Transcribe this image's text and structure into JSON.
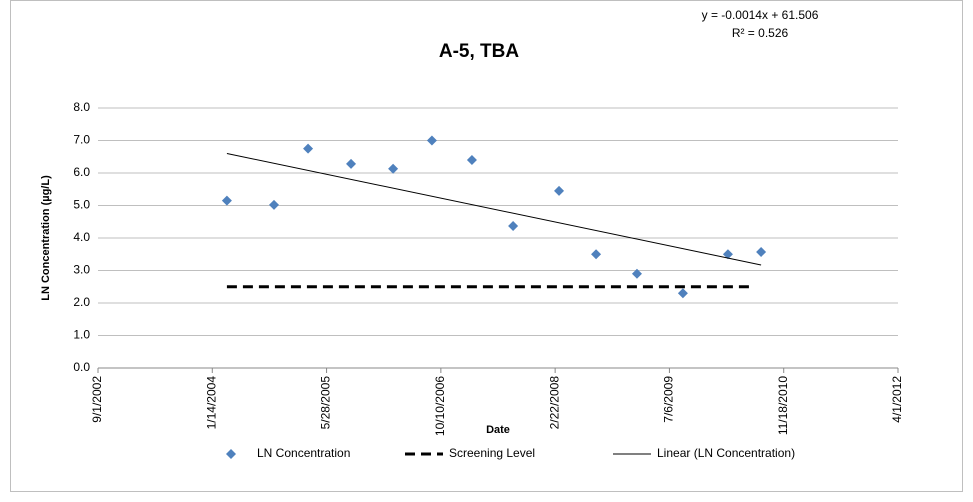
{
  "chart_data": {
    "type": "scatter",
    "title": "A-5, TBA",
    "annotations": [
      "y = -0.0014x + 61.506",
      "R² = 0.526"
    ],
    "x_label": "Date",
    "y_label": "LN Concentration (µg/L)",
    "xlim": [
      37500,
      41000
    ],
    "xticks": [
      {
        "value": 37500,
        "label": "9/1/2002"
      },
      {
        "value": 38000,
        "label": "1/14/2004"
      },
      {
        "value": 38500,
        "label": "5/28/2005"
      },
      {
        "value": 39000,
        "label": "10/10/2006"
      },
      {
        "value": 39500,
        "label": "2/22/2008"
      },
      {
        "value": 40000,
        "label": "7/6/2009"
      },
      {
        "value": 40500,
        "label": "11/18/2010"
      },
      {
        "value": 41000,
        "label": "4/1/2012"
      }
    ],
    "ylim": [
      0,
      8
    ],
    "yticks": [
      {
        "value": 0,
        "label": "0.0"
      },
      {
        "value": 1,
        "label": "1.0"
      },
      {
        "value": 2,
        "label": "2.0"
      },
      {
        "value": 3,
        "label": "3.0"
      },
      {
        "value": 4,
        "label": "4.0"
      },
      {
        "value": 5,
        "label": "5.0"
      },
      {
        "value": 6,
        "label": "6.0"
      },
      {
        "value": 7,
        "label": "7.0"
      },
      {
        "value": 8,
        "label": "8.0"
      }
    ],
    "grid": true,
    "legend": "bottom",
    "series": [
      {
        "name": "LN Concentration",
        "color": "#4f81bd",
        "marker": "diamond",
        "x": [
          38064,
          38270,
          38419,
          38607,
          38791,
          38961,
          39136,
          39316,
          39517,
          39679,
          39858,
          40059,
          40256,
          40401
        ],
        "values": [
          5.15,
          5.02,
          6.75,
          6.28,
          6.13,
          7.0,
          6.4,
          4.37,
          5.45,
          3.5,
          2.9,
          2.3,
          3.5,
          3.57
        ]
      },
      {
        "name": "Screening Level",
        "color": "#000000",
        "line_style": "dashed",
        "x": [
          38064,
          40361
        ],
        "values": [
          2.5,
          2.5
        ]
      },
      {
        "name": "Linear (LN Concentration)",
        "color": "#000000",
        "line_style": "solid",
        "x": [
          38064,
          40401
        ],
        "values": [
          6.6,
          3.17
        ]
      }
    ]
  }
}
